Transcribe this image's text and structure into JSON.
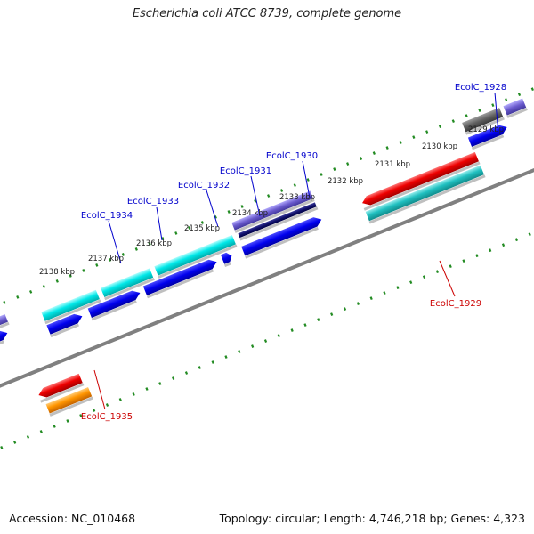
{
  "title": "Escherichia coli ATCC 8739, complete genome",
  "footer": {
    "accession": "Accession: NC_010468",
    "summary": "Topology: circular; Length: 4,746,218 bp; Genes: 4,323"
  },
  "colors": {
    "backbone": "#808080",
    "tick": "#228b22",
    "label_forward": "#0000cc",
    "label_reverse": "#cc0000",
    "cds_forward": "#0000ee",
    "cds_reverse": "#ee0000",
    "gene_forward": "#00dddd",
    "gene_reverse": "#ff8c00",
    "gene_dark": "#555555",
    "gene_purple": "#6a5acd"
  },
  "ruler_labels": [
    {
      "text": "2129 kbp"
    },
    {
      "text": "2130 kbp"
    },
    {
      "text": "2131 kbp"
    },
    {
      "text": "2132 kbp"
    },
    {
      "text": "2133 kbp"
    },
    {
      "text": "2134 kbp"
    },
    {
      "text": "2135 kbp"
    },
    {
      "text": "2136 kbp"
    },
    {
      "text": "2137 kbp"
    },
    {
      "text": "2138 kbp"
    }
  ],
  "gene_labels": [
    {
      "text": "EcolC_1928",
      "strand": "forward"
    },
    {
      "text": "EcolC_1929",
      "strand": "reverse"
    },
    {
      "text": "EcolC_1930",
      "strand": "forward"
    },
    {
      "text": "EcolC_1931",
      "strand": "forward"
    },
    {
      "text": "EcolC_1932",
      "strand": "forward"
    },
    {
      "text": "EcolC_1933",
      "strand": "forward"
    },
    {
      "text": "EcolC_1934",
      "strand": "forward"
    },
    {
      "text": "EcolC_1935",
      "strand": "reverse"
    }
  ]
}
